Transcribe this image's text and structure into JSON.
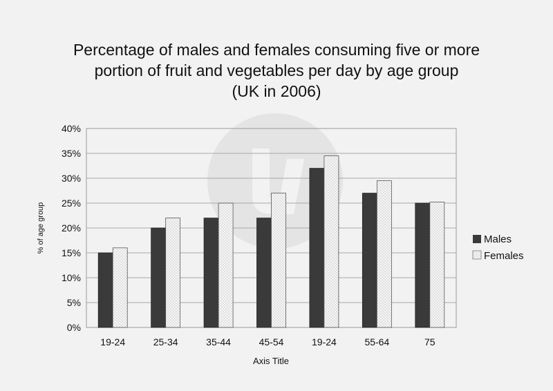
{
  "chart_data": {
    "type": "bar",
    "title": [
      "Percentage of males and females consuming five or more",
      "portion of fruit and vegetables per day by age group",
      "(UK in 2006)"
    ],
    "xlabel": "Axis Title",
    "ylabel": "% of age group",
    "categories": [
      "19-24",
      "25-34",
      "35-44",
      "45-54",
      "19-24",
      "55-64",
      "75"
    ],
    "series": [
      {
        "name": "Males",
        "values": [
          15,
          20,
          22,
          22,
          32,
          27,
          25
        ],
        "color": "#3a3a3a",
        "pattern": "solid"
      },
      {
        "name": "Females",
        "values": [
          16,
          22,
          25,
          27,
          34.5,
          29.5,
          25.2
        ],
        "color": "#f4f4f4",
        "pattern": "dotted"
      }
    ],
    "ylim": [
      0,
      40
    ],
    "yticks": [
      0,
      5,
      10,
      15,
      20,
      25,
      30,
      35,
      40
    ],
    "ytick_labels": [
      "0%",
      "5%",
      "10%",
      "15%",
      "20%",
      "25%",
      "30%",
      "35%",
      "40%"
    ],
    "grid": true,
    "legend_position": "right"
  }
}
